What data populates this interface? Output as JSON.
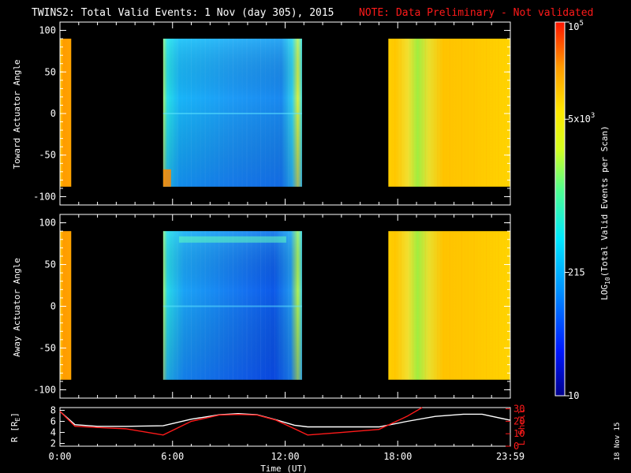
{
  "header": {
    "title": "TWINS2: Total Valid Events:  1 Nov (day 305), 2015",
    "note": "NOTE: Data Preliminary - Not validated"
  },
  "side_stamp": "18 Nov 15",
  "colors": {
    "background": "#000000",
    "axis": "#ffffff",
    "note": "#ff1a1a",
    "l_shell": "#ff1a1a",
    "r_line": "#ffffff"
  },
  "chart_data": [
    {
      "type": "heatmap",
      "name": "toward",
      "ylabel": "Toward Actuator Angle",
      "yticks": [
        "100",
        "50",
        "0",
        "-50",
        "-100"
      ],
      "ylim": [
        -110,
        110
      ],
      "y_data_range": [
        -88,
        90
      ],
      "xlim": [
        0,
        24
      ],
      "blocks": [
        {
          "x0": 0.0,
          "x1": 0.6,
          "level": "high"
        },
        {
          "x0": 5.5,
          "x1": 12.9,
          "level": "low"
        },
        {
          "x0": 17.5,
          "x1": 24.0,
          "level": "high"
        }
      ]
    },
    {
      "type": "heatmap",
      "name": "away",
      "ylabel": "Away Actuator Angle",
      "yticks": [
        "100",
        "50",
        "0",
        "-50",
        "-100"
      ],
      "ylim": [
        -110,
        110
      ],
      "y_data_range": [
        -88,
        90
      ],
      "xlim": [
        0,
        24
      ],
      "blocks": [
        {
          "x0": 0.0,
          "x1": 0.6,
          "level": "high"
        },
        {
          "x0": 5.5,
          "x1": 12.9,
          "level": "low"
        },
        {
          "x0": 17.5,
          "x1": 24.0,
          "level": "high"
        }
      ]
    },
    {
      "type": "line",
      "name": "orbit",
      "ylabel_left": "R [R",
      "ylabel_left_sub": "E",
      "ylabel_left_end": "]",
      "ylabel_right": "L Shell",
      "yticks_left": [
        "8",
        "6",
        "4",
        "2"
      ],
      "yticks_right": [
        "30",
        "20",
        "10",
        "0"
      ],
      "xlabel": "Time (UT)",
      "xticks": [
        "0:00",
        "6:00",
        "12:00",
        "18:00",
        "23:59"
      ],
      "xtick_hours": [
        0,
        6,
        12,
        18,
        24
      ],
      "series": [
        {
          "axis": "left",
          "ylim": [
            1.5,
            8.5
          ],
          "x": [
            0,
            0.8,
            2,
            3.5,
            5.5,
            7,
            8.5,
            9.5,
            10.5,
            11.5,
            12.5,
            13.2,
            15,
            17,
            18.5,
            20,
            21.5,
            22.5,
            24
          ],
          "y": [
            7.8,
            5.4,
            5.1,
            5.1,
            5.2,
            6.4,
            7.2,
            7.4,
            7.2,
            6.3,
            5.3,
            5.0,
            5.0,
            5.0,
            6.0,
            6.9,
            7.3,
            7.3,
            6.2
          ]
        },
        {
          "axis": "right",
          "ylim": [
            0,
            31
          ],
          "x": [
            0,
            0.8,
            2,
            3.5,
            5.5,
            7,
            8.5,
            9.5,
            10.5,
            11.5,
            12.5,
            13.2,
            15,
            17,
            18.5,
            19.3
          ],
          "y": [
            28,
            16,
            15,
            14,
            9,
            20,
            25,
            25.5,
            25,
            21,
            14,
            9,
            11,
            13.5,
            24,
            31
          ]
        }
      ]
    },
    {
      "type": "colorbar",
      "label": "LOG",
      "label_sub": "10",
      "label_rest": "(Total Valid Events per Scan)",
      "ticks": [
        {
          "base": "10",
          "exp": "5",
          "frac": 1.0
        },
        {
          "base": "5x10",
          "exp": "3",
          "frac": 0.74
        },
        {
          "base": "215",
          "exp": "",
          "frac": 0.33
        },
        {
          "base": "10",
          "exp": "",
          "frac": 0.0
        }
      ]
    }
  ]
}
